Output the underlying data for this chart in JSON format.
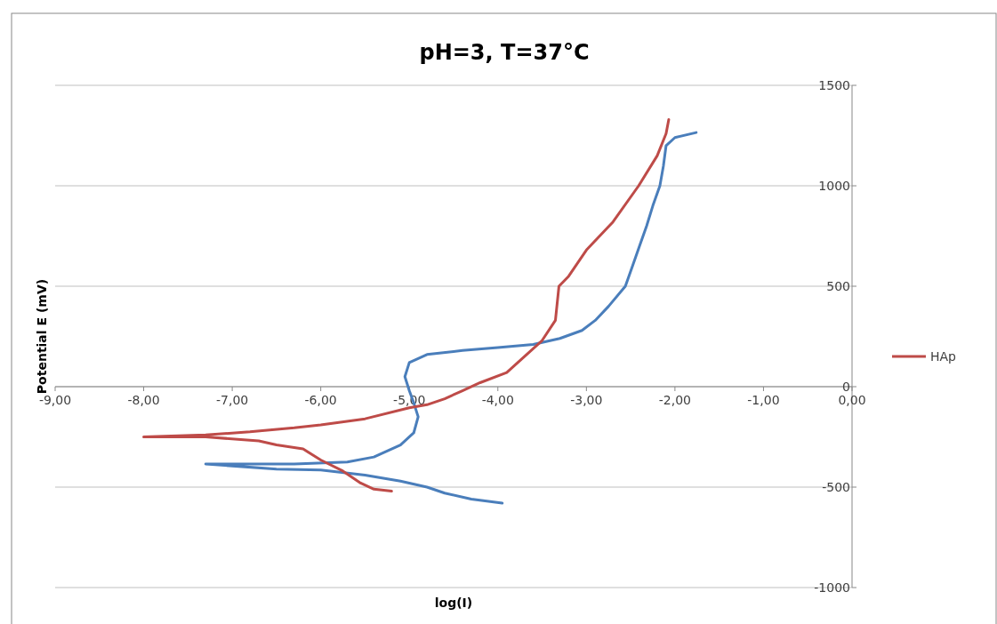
{
  "chart_data": {
    "type": "line",
    "title": "pH=3, T=37°C",
    "xlabel": "log(I)",
    "ylabel": "Potential E (mV)",
    "xlim": [
      -9,
      0
    ],
    "xticks": [
      {
        "value": -9,
        "label": "-9,00"
      },
      {
        "value": -8,
        "label": "-8,00"
      },
      {
        "value": -7,
        "label": "-7,00"
      },
      {
        "value": -6,
        "label": "-6,00"
      },
      {
        "value": -5,
        "label": "-5,00"
      },
      {
        "value": -4,
        "label": "-4,00"
      },
      {
        "value": -3,
        "label": "-3,00"
      },
      {
        "value": -2,
        "label": "-2,00"
      },
      {
        "value": -1,
        "label": "-1,00"
      },
      {
        "value": 0,
        "label": "0,00"
      }
    ],
    "ylim": [
      -1000,
      1500
    ],
    "yticks": [
      -1000,
      -500,
      0,
      500,
      1000,
      1500
    ],
    "grid": "y",
    "legend": "right",
    "marker": "none",
    "line_style": "solid",
    "series": [
      {
        "color": "#4a7ebb",
        "x": [
          -3.95,
          -4.3,
          -4.6,
          -4.8,
          -5.1,
          -5.5,
          -6.0,
          -6.5,
          -7.3,
          -6.3,
          -5.7,
          -5.4,
          -5.25,
          -5.1,
          -4.95,
          -4.9,
          -4.95,
          -5.0,
          -5.05,
          -5.0,
          -4.8,
          -4.4,
          -4.0,
          -3.6,
          -3.3,
          -3.05,
          -2.9,
          -2.75,
          -2.56,
          -2.48,
          -2.4,
          -2.32,
          -2.25,
          -2.17,
          -2.13,
          -2.1,
          -2.0,
          -1.76
        ],
        "values": [
          -580,
          -560,
          -530,
          -500,
          -470,
          -440,
          -415,
          -410,
          -385,
          -385,
          -375,
          -350,
          -320,
          -290,
          -230,
          -150,
          -80,
          -20,
          50,
          120,
          160,
          180,
          195,
          210,
          240,
          280,
          330,
          400,
          500,
          600,
          700,
          800,
          900,
          1000,
          1100,
          1200,
          1240,
          1265
        ]
      },
      {
        "name": "HAp",
        "color": "#be4b48",
        "x": [
          -5.2,
          -5.4,
          -5.55,
          -5.75,
          -6.0,
          -6.2,
          -6.5,
          -6.7,
          -7.3,
          -8.0,
          -7.3,
          -6.8,
          -6.3,
          -6.0,
          -5.5,
          -5.0,
          -4.8,
          -4.6,
          -4.4,
          -4.2,
          -3.9,
          -3.7,
          -3.5,
          -3.35,
          -3.31,
          -3.2,
          -3.0,
          -2.7,
          -2.41,
          -2.2,
          -2.1,
          -2.07
        ],
        "values": [
          -520,
          -510,
          -480,
          -420,
          -365,
          -310,
          -290,
          -270,
          -250,
          -250,
          -240,
          -225,
          -205,
          -190,
          -160,
          -105,
          -90,
          -60,
          -20,
          20,
          70,
          150,
          230,
          330,
          500,
          550,
          680,
          820,
          1000,
          1150,
          1260,
          1330
        ]
      }
    ]
  }
}
